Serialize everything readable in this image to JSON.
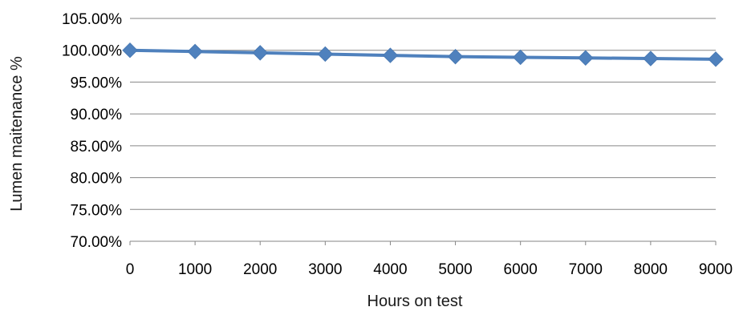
{
  "chart_data": {
    "type": "line",
    "title": "",
    "xlabel": "Hours on test",
    "ylabel": "Lumen maitenance %",
    "categories": [
      "0",
      "1000",
      "2000",
      "3000",
      "4000",
      "5000",
      "6000",
      "7000",
      "8000",
      "9000"
    ],
    "y_tick_labels": [
      "105.00%",
      "100.00%",
      "95.00%",
      "90.00%",
      "85.00%",
      "80.00%",
      "75.00%",
      "70.00%"
    ],
    "ylim": [
      70,
      105
    ],
    "grid": true,
    "legend": "none",
    "series": [
      {
        "values": [
          100.0,
          99.8,
          99.6,
          99.4,
          99.2,
          99.0,
          98.9,
          98.8,
          98.7,
          98.6
        ],
        "color": "#4f81bd",
        "marker": "diamond"
      }
    ]
  }
}
